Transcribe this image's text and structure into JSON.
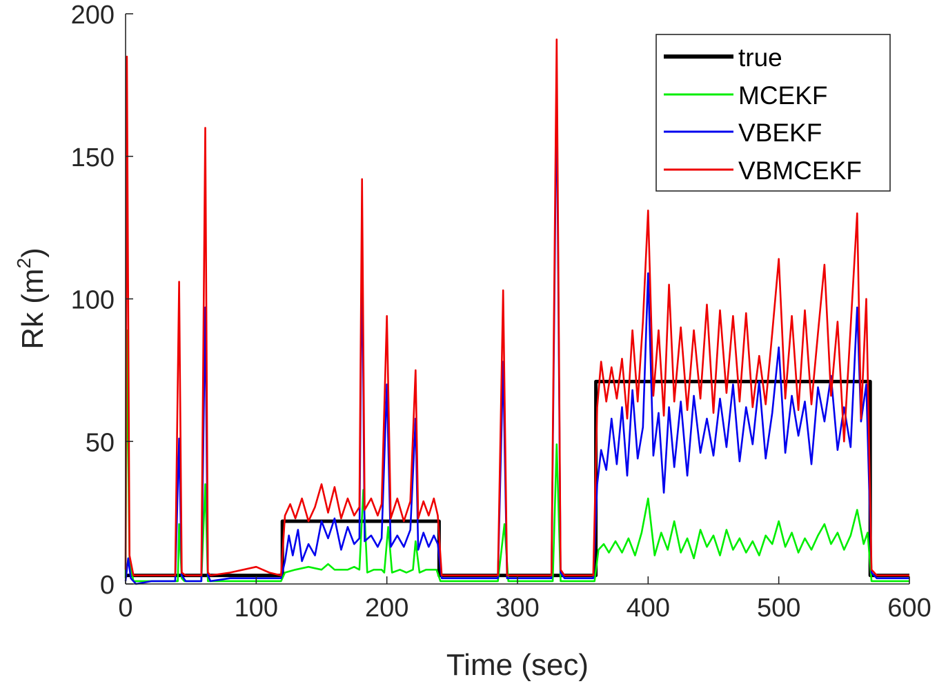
{
  "chart_data": {
    "type": "line",
    "title": "",
    "xlabel": "Time (sec)",
    "ylabel_main": "Rk (m",
    "ylabel_sup": "2",
    "ylabel_close": ")",
    "xlim": [
      0,
      600
    ],
    "ylim": [
      0,
      200
    ],
    "xticks": [
      "0",
      "100",
      "200",
      "300",
      "400",
      "500",
      "600"
    ],
    "yticks": [
      "0",
      "50",
      "100",
      "150",
      "200"
    ],
    "grid": false,
    "legend_position": "top-right",
    "series": [
      {
        "name": "true",
        "color": "#000000",
        "points": [
          [
            0,
            3
          ],
          [
            120,
            3
          ],
          [
            120,
            22
          ],
          [
            240,
            22
          ],
          [
            240,
            3
          ],
          [
            360,
            3
          ],
          [
            360,
            71
          ],
          [
            570,
            71
          ],
          [
            570,
            3
          ],
          [
            600,
            3
          ]
        ]
      },
      {
        "name": "MCEKF",
        "color": "#00ee00",
        "points": [
          [
            0,
            2
          ],
          [
            1,
            89
          ],
          [
            3,
            8
          ],
          [
            6,
            1
          ],
          [
            20,
            1
          ],
          [
            40,
            1
          ],
          [
            41,
            21
          ],
          [
            43,
            2
          ],
          [
            45,
            1
          ],
          [
            58,
            1
          ],
          [
            61,
            35
          ],
          [
            63,
            1
          ],
          [
            80,
            1
          ],
          [
            100,
            1
          ],
          [
            119,
            1
          ],
          [
            122,
            4
          ],
          [
            130,
            5
          ],
          [
            140,
            6
          ],
          [
            150,
            5
          ],
          [
            155,
            7
          ],
          [
            160,
            5
          ],
          [
            170,
            5
          ],
          [
            175,
            6
          ],
          [
            179,
            5
          ],
          [
            182,
            33
          ],
          [
            185,
            4
          ],
          [
            190,
            5
          ],
          [
            196,
            5
          ],
          [
            198,
            4
          ],
          [
            201,
            20
          ],
          [
            204,
            4
          ],
          [
            210,
            5
          ],
          [
            215,
            4
          ],
          [
            220,
            5
          ],
          [
            222,
            15
          ],
          [
            225,
            4
          ],
          [
            230,
            5
          ],
          [
            238,
            5
          ],
          [
            241,
            1
          ],
          [
            260,
            1
          ],
          [
            285,
            1
          ],
          [
            290,
            21
          ],
          [
            293,
            1
          ],
          [
            310,
            1
          ],
          [
            327,
            1
          ],
          [
            330,
            49
          ],
          [
            333,
            1
          ],
          [
            355,
            1
          ],
          [
            359,
            1
          ],
          [
            362,
            12
          ],
          [
            366,
            14
          ],
          [
            370,
            11
          ],
          [
            375,
            15
          ],
          [
            380,
            11
          ],
          [
            385,
            16
          ],
          [
            390,
            10
          ],
          [
            395,
            18
          ],
          [
            400,
            30
          ],
          [
            405,
            10
          ],
          [
            410,
            18
          ],
          [
            415,
            12
          ],
          [
            420,
            22
          ],
          [
            425,
            11
          ],
          [
            430,
            16
          ],
          [
            435,
            9
          ],
          [
            440,
            19
          ],
          [
            445,
            13
          ],
          [
            450,
            17
          ],
          [
            455,
            10
          ],
          [
            460,
            19
          ],
          [
            465,
            12
          ],
          [
            470,
            16
          ],
          [
            475,
            11
          ],
          [
            480,
            15
          ],
          [
            485,
            10
          ],
          [
            490,
            17
          ],
          [
            495,
            14
          ],
          [
            500,
            22
          ],
          [
            505,
            13
          ],
          [
            510,
            18
          ],
          [
            515,
            11
          ],
          [
            520,
            16
          ],
          [
            525,
            12
          ],
          [
            530,
            17
          ],
          [
            535,
            21
          ],
          [
            540,
            14
          ],
          [
            545,
            18
          ],
          [
            550,
            12
          ],
          [
            555,
            17
          ],
          [
            560,
            26
          ],
          [
            565,
            14
          ],
          [
            568,
            18
          ],
          [
            571,
            1
          ],
          [
            580,
            1
          ],
          [
            600,
            1
          ]
        ]
      },
      {
        "name": "VBEKF",
        "color": "#0000ee",
        "points": [
          [
            0,
            1
          ],
          [
            2,
            9
          ],
          [
            4,
            2
          ],
          [
            8,
            0
          ],
          [
            20,
            1
          ],
          [
            38,
            1
          ],
          [
            41,
            51
          ],
          [
            43,
            3
          ],
          [
            46,
            1
          ],
          [
            58,
            1
          ],
          [
            61,
            97
          ],
          [
            63,
            3
          ],
          [
            65,
            1
          ],
          [
            80,
            2
          ],
          [
            100,
            2
          ],
          [
            119,
            2
          ],
          [
            122,
            8
          ],
          [
            125,
            17
          ],
          [
            128,
            10
          ],
          [
            132,
            19
          ],
          [
            135,
            8
          ],
          [
            140,
            14
          ],
          [
            145,
            10
          ],
          [
            150,
            22
          ],
          [
            155,
            16
          ],
          [
            160,
            23
          ],
          [
            165,
            12
          ],
          [
            170,
            20
          ],
          [
            175,
            14
          ],
          [
            179,
            16
          ],
          [
            181,
            120
          ],
          [
            183,
            15
          ],
          [
            188,
            17
          ],
          [
            193,
            13
          ],
          [
            196,
            16
          ],
          [
            200,
            70
          ],
          [
            203,
            13
          ],
          [
            208,
            17
          ],
          [
            213,
            13
          ],
          [
            218,
            19
          ],
          [
            222,
            58
          ],
          [
            224,
            12
          ],
          [
            228,
            18
          ],
          [
            232,
            13
          ],
          [
            236,
            17
          ],
          [
            239,
            14
          ],
          [
            242,
            2
          ],
          [
            260,
            2
          ],
          [
            285,
            2
          ],
          [
            289,
            78
          ],
          [
            292,
            2
          ],
          [
            310,
            2
          ],
          [
            326,
            2
          ],
          [
            330,
            175
          ],
          [
            333,
            4
          ],
          [
            336,
            2
          ],
          [
            358,
            2
          ],
          [
            361,
            35
          ],
          [
            364,
            47
          ],
          [
            368,
            40
          ],
          [
            372,
            58
          ],
          [
            376,
            42
          ],
          [
            380,
            62
          ],
          [
            384,
            38
          ],
          [
            388,
            68
          ],
          [
            392,
            44
          ],
          [
            396,
            55
          ],
          [
            400,
            109
          ],
          [
            404,
            45
          ],
          [
            408,
            60
          ],
          [
            412,
            32
          ],
          [
            416,
            62
          ],
          [
            420,
            41
          ],
          [
            425,
            64
          ],
          [
            430,
            38
          ],
          [
            435,
            66
          ],
          [
            440,
            46
          ],
          [
            445,
            58
          ],
          [
            450,
            45
          ],
          [
            455,
            65
          ],
          [
            460,
            48
          ],
          [
            465,
            70
          ],
          [
            470,
            43
          ],
          [
            475,
            62
          ],
          [
            480,
            49
          ],
          [
            485,
            71
          ],
          [
            490,
            44
          ],
          [
            495,
            60
          ],
          [
            500,
            83
          ],
          [
            505,
            46
          ],
          [
            510,
            66
          ],
          [
            515,
            52
          ],
          [
            520,
            64
          ],
          [
            525,
            42
          ],
          [
            530,
            69
          ],
          [
            535,
            57
          ],
          [
            540,
            73
          ],
          [
            545,
            47
          ],
          [
            550,
            62
          ],
          [
            555,
            48
          ],
          [
            560,
            97
          ],
          [
            563,
            57
          ],
          [
            567,
            70
          ],
          [
            571,
            4
          ],
          [
            575,
            2
          ],
          [
            600,
            2
          ]
        ]
      },
      {
        "name": "VBMCEKF",
        "color": "#ee0000",
        "points": [
          [
            0,
            5
          ],
          [
            1,
            185
          ],
          [
            3,
            10
          ],
          [
            6,
            3
          ],
          [
            20,
            3
          ],
          [
            38,
            3
          ],
          [
            41,
            106
          ],
          [
            43,
            4
          ],
          [
            46,
            3
          ],
          [
            58,
            3
          ],
          [
            61,
            160
          ],
          [
            63,
            4
          ],
          [
            65,
            3
          ],
          [
            80,
            4
          ],
          [
            100,
            6
          ],
          [
            110,
            4
          ],
          [
            119,
            3
          ],
          [
            122,
            24
          ],
          [
            126,
            28
          ],
          [
            130,
            23
          ],
          [
            135,
            30
          ],
          [
            140,
            22
          ],
          [
            145,
            27
          ],
          [
            150,
            35
          ],
          [
            155,
            25
          ],
          [
            160,
            34
          ],
          [
            165,
            23
          ],
          [
            170,
            30
          ],
          [
            175,
            24
          ],
          [
            179,
            27
          ],
          [
            181,
            142
          ],
          [
            183,
            26
          ],
          [
            188,
            30
          ],
          [
            193,
            24
          ],
          [
            196,
            28
          ],
          [
            200,
            94
          ],
          [
            203,
            23
          ],
          [
            208,
            30
          ],
          [
            213,
            22
          ],
          [
            218,
            29
          ],
          [
            222,
            75
          ],
          [
            224,
            23
          ],
          [
            228,
            29
          ],
          [
            232,
            24
          ],
          [
            236,
            30
          ],
          [
            239,
            24
          ],
          [
            242,
            3
          ],
          [
            260,
            3
          ],
          [
            285,
            3
          ],
          [
            289,
            103
          ],
          [
            292,
            3
          ],
          [
            310,
            3
          ],
          [
            326,
            3
          ],
          [
            330,
            191
          ],
          [
            333,
            5
          ],
          [
            336,
            3
          ],
          [
            358,
            3
          ],
          [
            361,
            62
          ],
          [
            364,
            78
          ],
          [
            368,
            64
          ],
          [
            372,
            76
          ],
          [
            376,
            65
          ],
          [
            380,
            79
          ],
          [
            384,
            58
          ],
          [
            388,
            89
          ],
          [
            392,
            64
          ],
          [
            396,
            92
          ],
          [
            400,
            131
          ],
          [
            404,
            66
          ],
          [
            408,
            89
          ],
          [
            412,
            59
          ],
          [
            416,
            105
          ],
          [
            420,
            64
          ],
          [
            425,
            90
          ],
          [
            430,
            61
          ],
          [
            435,
            89
          ],
          [
            440,
            65
          ],
          [
            445,
            98
          ],
          [
            450,
            60
          ],
          [
            455,
            96
          ],
          [
            460,
            67
          ],
          [
            465,
            94
          ],
          [
            470,
            64
          ],
          [
            475,
            95
          ],
          [
            480,
            62
          ],
          [
            485,
            80
          ],
          [
            490,
            63
          ],
          [
            495,
            88
          ],
          [
            500,
            114
          ],
          [
            505,
            65
          ],
          [
            510,
            94
          ],
          [
            515,
            61
          ],
          [
            520,
            96
          ],
          [
            525,
            63
          ],
          [
            530,
            88
          ],
          [
            535,
            112
          ],
          [
            540,
            66
          ],
          [
            545,
            92
          ],
          [
            550,
            50
          ],
          [
            555,
            90
          ],
          [
            560,
            130
          ],
          [
            563,
            58
          ],
          [
            567,
            100
          ],
          [
            571,
            5
          ],
          [
            575,
            3
          ],
          [
            600,
            3
          ]
        ]
      }
    ]
  }
}
